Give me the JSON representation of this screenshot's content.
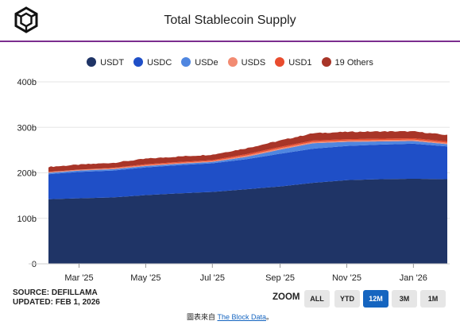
{
  "title": "Total Stablecoin Supply",
  "legend": [
    {
      "label": "USDT",
      "color": "#1f3466"
    },
    {
      "label": "USDC",
      "color": "#1f4fc7"
    },
    {
      "label": "USDe",
      "color": "#4f86e0"
    },
    {
      "label": "USDS",
      "color": "#f28b72"
    },
    {
      "label": "USD1",
      "color": "#e94c2e"
    },
    {
      "label": "19 Others",
      "color": "#a83528"
    }
  ],
  "source": {
    "line1": "SOURCE: DEFILLAMA",
    "line2": "UPDATED: FEB 1, 2026"
  },
  "zoom": {
    "label": "ZOOM",
    "buttons": [
      {
        "label": "ALL",
        "active": false
      },
      {
        "label": "YTD",
        "active": false
      },
      {
        "label": "12M",
        "active": true
      },
      {
        "label": "3M",
        "active": false
      },
      {
        "label": "1M",
        "active": false
      }
    ]
  },
  "credit": {
    "prefix": "圖表來自",
    "link": "The Block Data",
    "suffix": "。"
  },
  "chart_data": {
    "type": "area",
    "stacked": true,
    "x": [
      "2025-02-01",
      "2025-03-01",
      "2025-04-01",
      "2025-05-01",
      "2025-06-01",
      "2025-07-01",
      "2025-08-01",
      "2025-09-01",
      "2025-10-01",
      "2025-11-01",
      "2025-12-01",
      "2026-01-01",
      "2026-02-01"
    ],
    "series": [
      {
        "name": "USDT",
        "color": "#1f3466",
        "values": [
          142,
          144,
          146,
          151,
          155,
          158,
          164,
          170,
          178,
          184,
          186,
          187,
          186
        ]
      },
      {
        "name": "USDC",
        "color": "#1f4fc7",
        "values": [
          55,
          58,
          59,
          61,
          62,
          63,
          66,
          72,
          75,
          75,
          76,
          77,
          72
        ]
      },
      {
        "name": "USDe",
        "color": "#4f86e0",
        "values": [
          3,
          3,
          3,
          3,
          3,
          3,
          5,
          9,
          12,
          9,
          7,
          6,
          5
        ]
      },
      {
        "name": "USDS",
        "color": "#f28b72",
        "values": [
          2,
          2,
          2,
          2,
          2,
          2,
          3,
          3,
          3,
          3,
          3,
          3,
          3
        ]
      },
      {
        "name": "USD1",
        "color": "#e94c2e",
        "values": [
          0,
          0,
          1,
          2,
          2,
          2,
          3,
          3,
          3,
          3,
          3,
          3,
          3
        ]
      },
      {
        "name": "19 Others",
        "color": "#a83528",
        "values": [
          11,
          11,
          11,
          12,
          12,
          12,
          13,
          14,
          16,
          16,
          16,
          15,
          14
        ]
      }
    ],
    "xticks": [
      "Mar '25",
      "May '25",
      "Jul '25",
      "Sep '25",
      "Nov '25",
      "Jan '26"
    ],
    "xtick_dates": [
      "2025-03-01",
      "2025-05-01",
      "2025-07-01",
      "2025-09-01",
      "2025-11-01",
      "2026-01-01"
    ],
    "yticks": [
      "0",
      "100b",
      "200b",
      "300b",
      "400b"
    ],
    "ytick_values": [
      0,
      100,
      200,
      300,
      400
    ],
    "ylim": [
      0,
      400
    ],
    "units": "b",
    "grid": true
  }
}
